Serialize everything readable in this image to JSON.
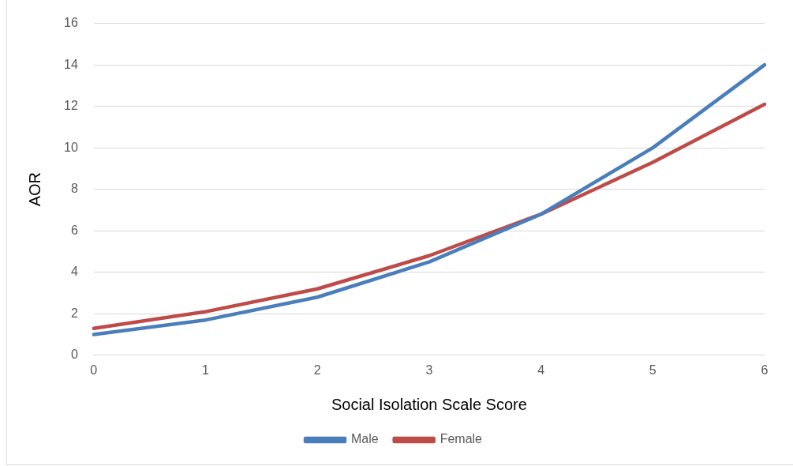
{
  "chart_data": {
    "type": "line",
    "xlabel": "Social Isolation Scale Score",
    "ylabel": "AOR",
    "categories": [
      "0",
      "1",
      "2",
      "3",
      "4",
      "5",
      "6"
    ],
    "series": [
      {
        "name": "Male",
        "color": "#4a7ebb",
        "values": [
          1.0,
          1.7,
          2.8,
          4.5,
          6.8,
          10.0,
          14.0
        ]
      },
      {
        "name": "Female",
        "color": "#be4b48",
        "values": [
          1.3,
          2.1,
          3.2,
          4.8,
          6.8,
          9.3,
          12.1
        ]
      }
    ],
    "ylim": [
      0,
      16
    ],
    "yticks": [
      0,
      2,
      4,
      6,
      8,
      10,
      12,
      14,
      16
    ],
    "grid": "y",
    "legend": "bottom",
    "marker": "none",
    "line_style": "solid"
  }
}
